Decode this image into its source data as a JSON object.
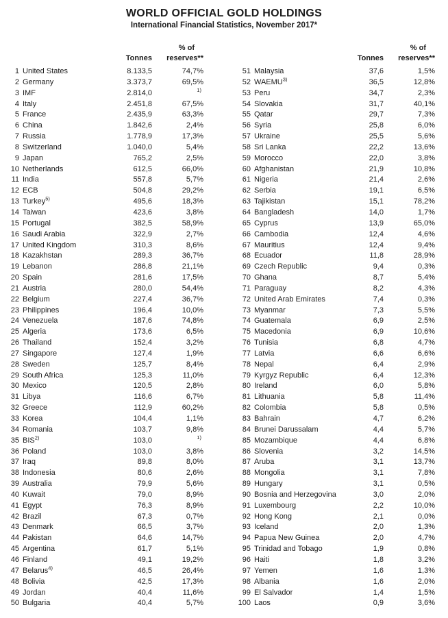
{
  "doc": {
    "title": "WORLD OFFICIAL GOLD HOLDINGS",
    "subtitle": "International Financial Statistics, November 2017*"
  },
  "headers": {
    "tonnes": "Tonnes",
    "pct_line1": "% of",
    "pct_line2": "reserves**"
  },
  "left_rows": [
    {
      "rank": "1",
      "name": "United States",
      "tonnes": "8.133,5",
      "pct": "74,7%"
    },
    {
      "rank": "2",
      "name": "Germany",
      "tonnes": "3.373,7",
      "pct": "69,5%"
    },
    {
      "rank": "3",
      "name": "IMF",
      "tonnes": "2.814,0",
      "pct": "",
      "pct_sup": "1)"
    },
    {
      "rank": "4",
      "name": "Italy",
      "tonnes": "2.451,8",
      "pct": "67,5%"
    },
    {
      "rank": "5",
      "name": "France",
      "tonnes": "2.435,9",
      "pct": "63,3%"
    },
    {
      "rank": "6",
      "name": "China",
      "tonnes": "1.842,6",
      "pct": "2,4%"
    },
    {
      "rank": "7",
      "name": "Russia",
      "tonnes": "1.778,9",
      "pct": "17,3%"
    },
    {
      "rank": "8",
      "name": "Switzerland",
      "tonnes": "1.040,0",
      "pct": "5,4%"
    },
    {
      "rank": "9",
      "name": "Japan",
      "tonnes": "765,2",
      "pct": "2,5%"
    },
    {
      "rank": "10",
      "name": "Netherlands",
      "tonnes": "612,5",
      "pct": "66,0%"
    },
    {
      "rank": "11",
      "name": "India",
      "tonnes": "557,8",
      "pct": "5,7%"
    },
    {
      "rank": "12",
      "name": "ECB",
      "tonnes": "504,8",
      "pct": "29,2%"
    },
    {
      "rank": "13",
      "name": "Turkey",
      "sup": "5)",
      "tonnes": "495,6",
      "pct": "18,3%"
    },
    {
      "rank": "14",
      "name": "Taiwan",
      "tonnes": "423,6",
      "pct": "3,8%"
    },
    {
      "rank": "15",
      "name": "Portugal",
      "tonnes": "382,5",
      "pct": "58,9%"
    },
    {
      "rank": "16",
      "name": "Saudi Arabia",
      "tonnes": "322,9",
      "pct": "2,7%"
    },
    {
      "rank": "17",
      "name": "United Kingdom",
      "tonnes": "310,3",
      "pct": "8,6%"
    },
    {
      "rank": "18",
      "name": "Kazakhstan",
      "tonnes": "289,3",
      "pct": "36,7%"
    },
    {
      "rank": "19",
      "name": "Lebanon",
      "tonnes": "286,8",
      "pct": "21,1%"
    },
    {
      "rank": "20",
      "name": "Spain",
      "tonnes": "281,6",
      "pct": "17,5%"
    },
    {
      "rank": "21",
      "name": "Austria",
      "tonnes": "280,0",
      "pct": "54,4%"
    },
    {
      "rank": "22",
      "name": "Belgium",
      "tonnes": "227,4",
      "pct": "36,7%"
    },
    {
      "rank": "23",
      "name": "Philippines",
      "tonnes": "196,4",
      "pct": "10,0%"
    },
    {
      "rank": "24",
      "name": "Venezuela",
      "tonnes": "187,6",
      "pct": "74,8%"
    },
    {
      "rank": "25",
      "name": "Algeria",
      "tonnes": "173,6",
      "pct": "6,5%"
    },
    {
      "rank": "26",
      "name": "Thailand",
      "tonnes": "152,4",
      "pct": "3,2%"
    },
    {
      "rank": "27",
      "name": "Singapore",
      "tonnes": "127,4",
      "pct": "1,9%"
    },
    {
      "rank": "28",
      "name": "Sweden",
      "tonnes": "125,7",
      "pct": "8,4%"
    },
    {
      "rank": "29",
      "name": "South Africa",
      "tonnes": "125,3",
      "pct": "11,0%"
    },
    {
      "rank": "30",
      "name": "Mexico",
      "tonnes": "120,5",
      "pct": "2,8%"
    },
    {
      "rank": "31",
      "name": "Libya",
      "tonnes": "116,6",
      "pct": "6,7%"
    },
    {
      "rank": "32",
      "name": "Greece",
      "tonnes": "112,9",
      "pct": "60,2%"
    },
    {
      "rank": "33",
      "name": "Korea",
      "tonnes": "104,4",
      "pct": "1,1%"
    },
    {
      "rank": "34",
      "name": "Romania",
      "tonnes": "103,7",
      "pct": "9,8%"
    },
    {
      "rank": "35",
      "name": "BIS",
      "sup": "2)",
      "tonnes": "103,0",
      "pct": "",
      "pct_sup": "1)"
    },
    {
      "rank": "36",
      "name": "Poland",
      "tonnes": "103,0",
      "pct": "3,8%"
    },
    {
      "rank": "37",
      "name": "Iraq",
      "tonnes": "89,8",
      "pct": "8,0%"
    },
    {
      "rank": "38",
      "name": "Indonesia",
      "tonnes": "80,6",
      "pct": "2,6%"
    },
    {
      "rank": "39",
      "name": "Australia",
      "tonnes": "79,9",
      "pct": "5,6%"
    },
    {
      "rank": "40",
      "name": "Kuwait",
      "tonnes": "79,0",
      "pct": "8,9%"
    },
    {
      "rank": "41",
      "name": "Egypt",
      "tonnes": "76,3",
      "pct": "8,9%"
    },
    {
      "rank": "42",
      "name": "Brazil",
      "tonnes": "67,3",
      "pct": "0,7%"
    },
    {
      "rank": "43",
      "name": "Denmark",
      "tonnes": "66,5",
      "pct": "3,7%"
    },
    {
      "rank": "44",
      "name": "Pakistan",
      "tonnes": "64,6",
      "pct": "14,7%"
    },
    {
      "rank": "45",
      "name": "Argentina",
      "tonnes": "61,7",
      "pct": "5,1%"
    },
    {
      "rank": "46",
      "name": "Finland",
      "tonnes": "49,1",
      "pct": "19,2%"
    },
    {
      "rank": "47",
      "name": "Belarus",
      "sup": "4)",
      "tonnes": "46,5",
      "pct": "26,4%"
    },
    {
      "rank": "48",
      "name": "Bolivia",
      "tonnes": "42,5",
      "pct": "17,3%"
    },
    {
      "rank": "49",
      "name": "Jordan",
      "tonnes": "40,4",
      "pct": "11,6%"
    },
    {
      "rank": "50",
      "name": "Bulgaria",
      "tonnes": "40,4",
      "pct": "5,7%"
    }
  ],
  "right_rows": [
    {
      "rank": "51",
      "name": "Malaysia",
      "tonnes": "37,6",
      "pct": "1,5%"
    },
    {
      "rank": "52",
      "name": "WAEMU",
      "sup": "3)",
      "tonnes": "36,5",
      "pct": "12,8%"
    },
    {
      "rank": "53",
      "name": "Peru",
      "tonnes": "34,7",
      "pct": "2,3%"
    },
    {
      "rank": "54",
      "name": "Slovakia",
      "tonnes": "31,7",
      "pct": "40,1%"
    },
    {
      "rank": "55",
      "name": "Qatar",
      "tonnes": "29,7",
      "pct": "7,3%"
    },
    {
      "rank": "56",
      "name": "Syria",
      "tonnes": "25,8",
      "pct": "6,0%"
    },
    {
      "rank": "57",
      "name": "Ukraine",
      "tonnes": "25,5",
      "pct": "5,6%"
    },
    {
      "rank": "58",
      "name": "Sri Lanka",
      "tonnes": "22,2",
      "pct": "13,6%"
    },
    {
      "rank": "59",
      "name": "Morocco",
      "tonnes": "22,0",
      "pct": "3,8%"
    },
    {
      "rank": "60",
      "name": "Afghanistan",
      "tonnes": "21,9",
      "pct": "10,8%"
    },
    {
      "rank": "61",
      "name": "Nigeria",
      "tonnes": "21,4",
      "pct": "2,6%"
    },
    {
      "rank": "62",
      "name": "Serbia",
      "tonnes": "19,1",
      "pct": "6,5%"
    },
    {
      "rank": "63",
      "name": "Tajikistan",
      "tonnes": "15,1",
      "pct": "78,2%"
    },
    {
      "rank": "64",
      "name": "Bangladesh",
      "tonnes": "14,0",
      "pct": "1,7%"
    },
    {
      "rank": "65",
      "name": "Cyprus",
      "tonnes": "13,9",
      "pct": "65,0%"
    },
    {
      "rank": "66",
      "name": "Cambodia",
      "tonnes": "12,4",
      "pct": "4,6%"
    },
    {
      "rank": "67",
      "name": "Mauritius",
      "tonnes": "12,4",
      "pct": "9,4%"
    },
    {
      "rank": "68",
      "name": "Ecuador",
      "tonnes": "11,8",
      "pct": "28,9%"
    },
    {
      "rank": "69",
      "name": "Czech Republic",
      "tonnes": "9,4",
      "pct": "0,3%"
    },
    {
      "rank": "70",
      "name": "Ghana",
      "tonnes": "8,7",
      "pct": "5,4%"
    },
    {
      "rank": "71",
      "name": "Paraguay",
      "tonnes": "8,2",
      "pct": "4,3%"
    },
    {
      "rank": "72",
      "name": "United Arab Emirates",
      "tonnes": "7,4",
      "pct": "0,3%"
    },
    {
      "rank": "73",
      "name": "Myanmar",
      "tonnes": "7,3",
      "pct": "5,5%"
    },
    {
      "rank": "74",
      "name": "Guatemala",
      "tonnes": "6,9",
      "pct": "2,5%"
    },
    {
      "rank": "75",
      "name": "Macedonia",
      "tonnes": "6,9",
      "pct": "10,6%"
    },
    {
      "rank": "76",
      "name": "Tunisia",
      "tonnes": "6,8",
      "pct": "4,7%"
    },
    {
      "rank": "77",
      "name": "Latvia",
      "tonnes": "6,6",
      "pct": "6,6%"
    },
    {
      "rank": "78",
      "name": "Nepal",
      "tonnes": "6,4",
      "pct": "2,9%"
    },
    {
      "rank": "79",
      "name": "Kyrgyz Republic",
      "tonnes": "6,4",
      "pct": "12,3%"
    },
    {
      "rank": "80",
      "name": "Ireland",
      "tonnes": "6,0",
      "pct": "5,8%"
    },
    {
      "rank": "81",
      "name": "Lithuania",
      "tonnes": "5,8",
      "pct": "11,4%"
    },
    {
      "rank": "82",
      "name": "Colombia",
      "tonnes": "5,8",
      "pct": "0,5%"
    },
    {
      "rank": "83",
      "name": "Bahrain",
      "tonnes": "4,7",
      "pct": "6,2%"
    },
    {
      "rank": "84",
      "name": "Brunei Darussalam",
      "tonnes": "4,4",
      "pct": "5,7%"
    },
    {
      "rank": "85",
      "name": "Mozambique",
      "tonnes": "4,4",
      "pct": "6,8%"
    },
    {
      "rank": "86",
      "name": "Slovenia",
      "tonnes": "3,2",
      "pct": "14,5%"
    },
    {
      "rank": "87",
      "name": "Aruba",
      "tonnes": "3,1",
      "pct": "13,7%"
    },
    {
      "rank": "88",
      "name": "Mongolia",
      "tonnes": "3,1",
      "pct": "7,8%"
    },
    {
      "rank": "89",
      "name": "Hungary",
      "tonnes": "3,1",
      "pct": "0,5%"
    },
    {
      "rank": "90",
      "name": "Bosnia and Herzegovina",
      "tonnes": "3,0",
      "pct": "2,0%"
    },
    {
      "rank": "91",
      "name": "Luxembourg",
      "tonnes": "2,2",
      "pct": "10,0%"
    },
    {
      "rank": "92",
      "name": "Hong Kong",
      "tonnes": "2,1",
      "pct": "0,0%"
    },
    {
      "rank": "93",
      "name": "Iceland",
      "tonnes": "2,0",
      "pct": "1,3%"
    },
    {
      "rank": "94",
      "name": "Papua New Guinea",
      "tonnes": "2,0",
      "pct": "4,7%"
    },
    {
      "rank": "95",
      "name": "Trinidad and Tobago",
      "tonnes": "1,9",
      "pct": "0,8%"
    },
    {
      "rank": "96",
      "name": "Haiti",
      "tonnes": "1,8",
      "pct": "3,2%"
    },
    {
      "rank": "97",
      "name": "Yemen",
      "tonnes": "1,6",
      "pct": "1,3%"
    },
    {
      "rank": "98",
      "name": "Albania",
      "tonnes": "1,6",
      "pct": "2,0%"
    },
    {
      "rank": "99",
      "name": "El Salvador",
      "tonnes": "1,4",
      "pct": "1,5%"
    },
    {
      "rank": "100",
      "name": "Laos",
      "tonnes": "0,9",
      "pct": "3,6%"
    }
  ]
}
